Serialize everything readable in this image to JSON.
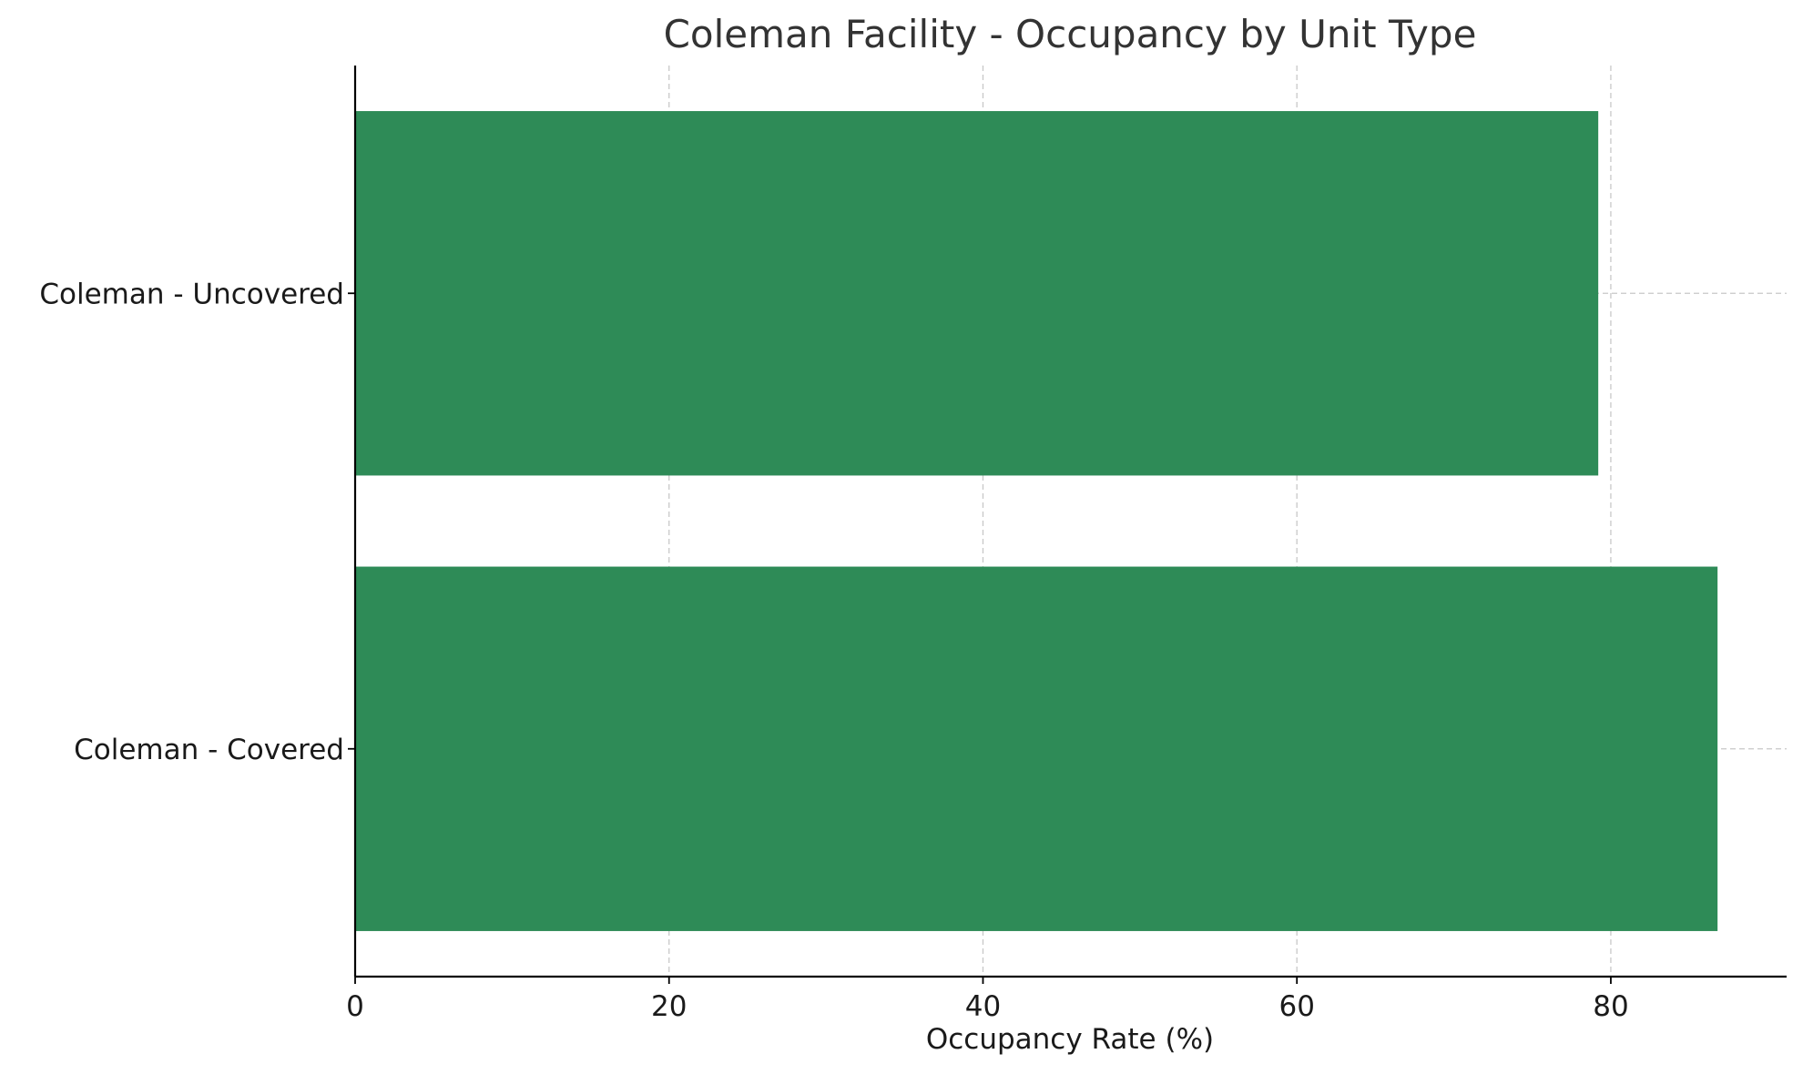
{
  "chart_data": {
    "type": "bar",
    "orientation": "horizontal",
    "title": "Coleman Facility - Occupancy by Unit Type",
    "xlabel": "Occupancy Rate (%)",
    "ylabel": "",
    "categories": [
      "Coleman - Covered",
      "Coleman - Uncovered"
    ],
    "values": [
      86.8,
      79.2
    ],
    "xlim": [
      0,
      91.2
    ],
    "xticks": [
      0,
      20,
      40,
      60,
      80
    ],
    "grid": true,
    "bar_color": "#2e8b57"
  }
}
